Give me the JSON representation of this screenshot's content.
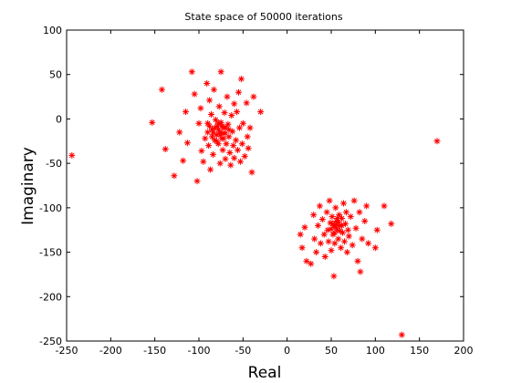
{
  "chart_data": {
    "type": "scatter",
    "title": "State space of 50000 iterations",
    "xlabel": "Real",
    "ylabel": "Imaginary",
    "xlim": [
      -250,
      200
    ],
    "ylim": [
      -250,
      100
    ],
    "xticks": [
      -250,
      -200,
      -150,
      -100,
      -50,
      0,
      50,
      100,
      150,
      200
    ],
    "yticks": [
      100,
      50,
      0,
      -50,
      -100,
      -150,
      -200,
      -250
    ],
    "grid": false,
    "marker": "*",
    "marker_color": "#ff0000",
    "series": [
      {
        "points": [
          [
            -244,
            -41
          ],
          [
            -153,
            -4
          ],
          [
            -142,
            33
          ],
          [
            -138,
            -34
          ],
          [
            -128,
            -64
          ],
          [
            -122,
            -15
          ],
          [
            -118,
            -47
          ],
          [
            -115,
            8
          ],
          [
            -113,
            -27
          ],
          [
            -108,
            53
          ],
          [
            -105,
            28
          ],
          [
            -102,
            -70
          ],
          [
            -100,
            -5
          ],
          [
            -98,
            12
          ],
          [
            -97,
            -36
          ],
          [
            -95,
            -48
          ],
          [
            -93,
            -22
          ],
          [
            -91,
            40
          ],
          [
            -90,
            -5
          ],
          [
            -89,
            -30
          ],
          [
            -88,
            21
          ],
          [
            -87,
            -57
          ],
          [
            -86,
            5
          ],
          [
            -85,
            -12
          ],
          [
            -84,
            -40
          ],
          [
            -83,
            33
          ],
          [
            -82,
            -24
          ],
          [
            -81,
            -1
          ],
          [
            -80,
            -18
          ],
          [
            -79,
            -8
          ],
          [
            -78,
            -28
          ],
          [
            -77,
            14
          ],
          [
            -76,
            -15
          ],
          [
            -76,
            -50
          ],
          [
            -75,
            53
          ],
          [
            -75,
            -4
          ],
          [
            -74,
            -22
          ],
          [
            -73,
            -35
          ],
          [
            -72,
            -10
          ],
          [
            -71,
            7
          ],
          [
            -70,
            -16
          ],
          [
            -70,
            -45
          ],
          [
            -69,
            -28
          ],
          [
            -68,
            25
          ],
          [
            -67,
            -6
          ],
          [
            -66,
            -20
          ],
          [
            -65,
            -38
          ],
          [
            -64,
            -52
          ],
          [
            -63,
            4
          ],
          [
            -62,
            -14
          ],
          [
            -61,
            -30
          ],
          [
            -60,
            17
          ],
          [
            -60,
            -44
          ],
          [
            -58,
            -24
          ],
          [
            -57,
            8
          ],
          [
            -56,
            -35
          ],
          [
            -55,
            30
          ],
          [
            -54,
            -10
          ],
          [
            -53,
            -48
          ],
          [
            -52,
            45
          ],
          [
            -51,
            -28
          ],
          [
            -50,
            -5
          ],
          [
            -48,
            -42
          ],
          [
            -46,
            18
          ],
          [
            -45,
            -20
          ],
          [
            -44,
            -33
          ],
          [
            -42,
            -10
          ],
          [
            -40,
            -60
          ],
          [
            -38,
            25
          ],
          [
            -30,
            8
          ],
          [
            -90,
            -15
          ],
          [
            -85,
            -20
          ],
          [
            -82,
            -10
          ],
          [
            -80,
            -25
          ],
          [
            -78,
            -12
          ],
          [
            -76,
            -18
          ],
          [
            -74,
            -8
          ],
          [
            -72,
            -22
          ],
          [
            -70,
            -10
          ],
          [
            -84,
            -15
          ],
          [
            -78,
            -5
          ],
          [
            -72,
            -16
          ],
          [
            -66,
            -12
          ],
          [
            -88,
            -8
          ]
        ]
      },
      {
        "points": [
          [
            15,
            -130
          ],
          [
            17,
            -145
          ],
          [
            20,
            -122
          ],
          [
            22,
            -160
          ],
          [
            27,
            -163
          ],
          [
            30,
            -108
          ],
          [
            31,
            -135
          ],
          [
            33,
            -150
          ],
          [
            35,
            -120
          ],
          [
            37,
            -98
          ],
          [
            38,
            -140
          ],
          [
            40,
            -113
          ],
          [
            42,
            -130
          ],
          [
            43,
            -155
          ],
          [
            45,
            -105
          ],
          [
            46,
            -125
          ],
          [
            47,
            -138
          ],
          [
            48,
            -92
          ],
          [
            49,
            -117
          ],
          [
            50,
            -148
          ],
          [
            51,
            -110
          ],
          [
            52,
            -130
          ],
          [
            53,
            -120
          ],
          [
            53,
            -177
          ],
          [
            54,
            -140
          ],
          [
            55,
            -100
          ],
          [
            56,
            -115
          ],
          [
            57,
            -125
          ],
          [
            58,
            -135
          ],
          [
            59,
            -108
          ],
          [
            60,
            -120
          ],
          [
            61,
            -145
          ],
          [
            62,
            -112
          ],
          [
            63,
            -128
          ],
          [
            64,
            -95
          ],
          [
            65,
            -138
          ],
          [
            66,
            -118
          ],
          [
            67,
            -105
          ],
          [
            68,
            -150
          ],
          [
            69,
            -125
          ],
          [
            70,
            -132
          ],
          [
            72,
            -110
          ],
          [
            74,
            -142
          ],
          [
            76,
            -92
          ],
          [
            78,
            -123
          ],
          [
            80,
            -160
          ],
          [
            82,
            -105
          ],
          [
            83,
            -172
          ],
          [
            85,
            -135
          ],
          [
            88,
            -115
          ],
          [
            90,
            -98
          ],
          [
            92,
            -140
          ],
          [
            100,
            -145
          ],
          [
            102,
            -125
          ],
          [
            110,
            -98
          ],
          [
            118,
            -118
          ],
          [
            130,
            -243
          ],
          [
            170,
            -25
          ],
          [
            52,
            -118
          ],
          [
            55,
            -122
          ],
          [
            58,
            -116
          ],
          [
            60,
            -126
          ],
          [
            57,
            -112
          ],
          [
            54,
            -128
          ],
          [
            62,
            -120
          ],
          [
            50,
            -124
          ],
          [
            56,
            -119
          ]
        ]
      }
    ]
  }
}
